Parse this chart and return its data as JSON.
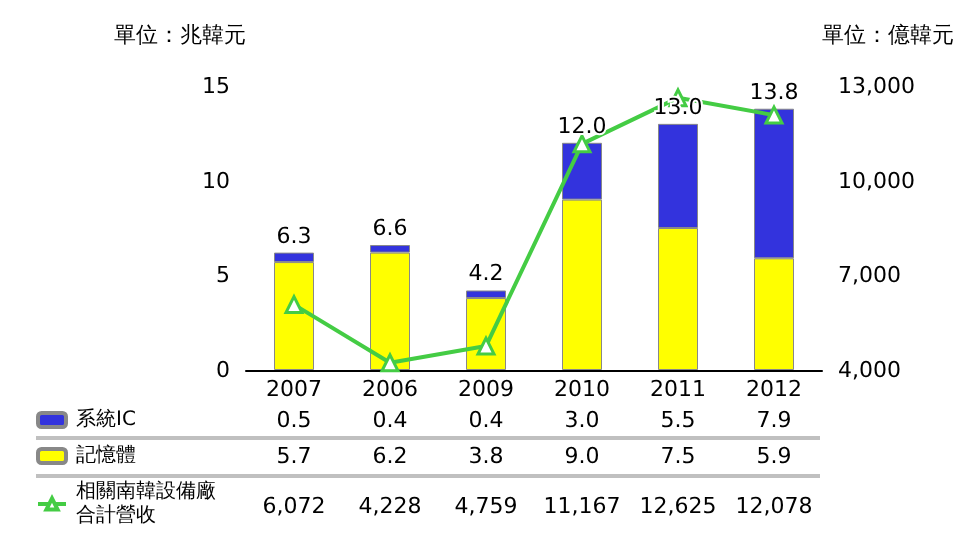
{
  "chart_data": {
    "type": "bar",
    "stacked": true,
    "ylabel": "單位：兆韓元",
    "y2label": "單位：億韓元",
    "categories": [
      "2007",
      "2006",
      "2009",
      "2010",
      "2011",
      "2012"
    ],
    "series": [
      {
        "name": "記憶體",
        "color": "#ffff00",
        "values": [
          5.7,
          6.2,
          3.8,
          9.0,
          7.5,
          5.9
        ],
        "value_labels": [
          "5.7",
          "6.2",
          "3.8",
          "9.0",
          "7.5",
          "5.9"
        ]
      },
      {
        "name": "系統IC",
        "color": "#3333dd",
        "values": [
          0.5,
          0.4,
          0.4,
          3.0,
          5.5,
          7.9
        ],
        "value_labels": [
          "0.5",
          "0.4",
          "0.4",
          "3.0",
          "5.5",
          "7.9"
        ]
      },
      {
        "name": "相關南韓設備廠合計營收",
        "type": "line",
        "axis": "y2",
        "color": "#44cc44",
        "marker": "triangle",
        "values": [
          6072,
          4228,
          4759,
          11167,
          12625,
          12078
        ],
        "value_labels": [
          "6,072",
          "4,228",
          "4,759",
          "11,167",
          "12,625",
          "12,078"
        ]
      }
    ],
    "totals": [
      "6.3",
      "6.6",
      "4.2",
      "12.0",
      "13.0",
      "13.8"
    ],
    "ylim": [
      0,
      15
    ],
    "yticks": [
      0,
      5,
      10,
      15
    ],
    "y2lim": [
      4000,
      13000
    ],
    "y2ticks": [
      {
        "value": 4000,
        "label": "4,000"
      },
      {
        "value": 7000,
        "label": "7,000"
      },
      {
        "value": 10000,
        "label": "10,000"
      },
      {
        "value": 13000,
        "label": "13,000"
      }
    ],
    "legend": "bottom left",
    "grid": false
  }
}
